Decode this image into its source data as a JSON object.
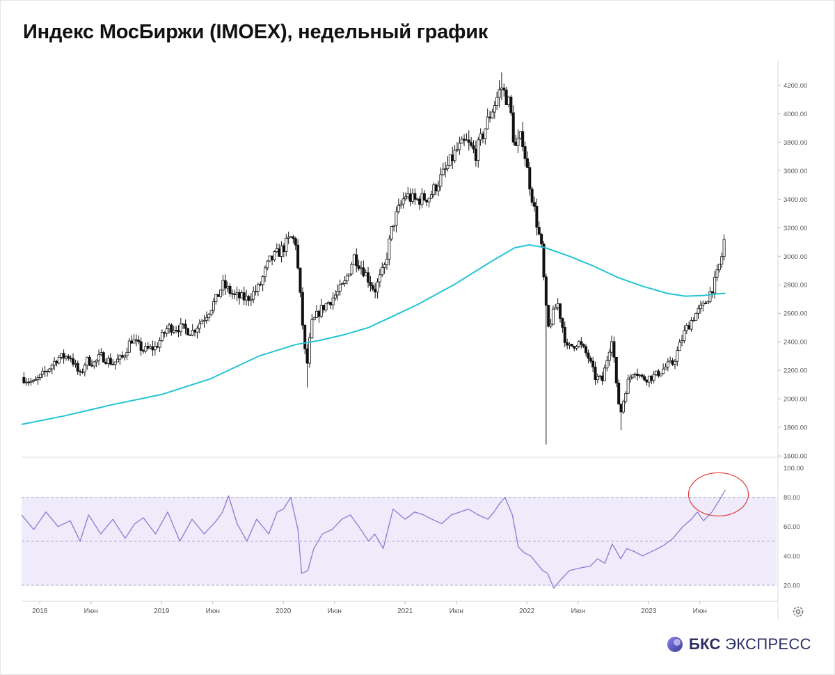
{
  "title": "Индекс МосБиржи (IMOEX), недельный график",
  "brand": {
    "bold": "БКС",
    "light": "ЭКСПРЕСС",
    "color": "#2b2d64"
  },
  "colors": {
    "candle": "#111111",
    "ma": "#22c4d4",
    "rsi_line": "#8c7ad0",
    "rsi_band": "#efebfb",
    "annotation": "#e23a3a"
  },
  "chart_data": [
    {
      "type": "candlestick",
      "title": "Индекс МосБиржи (IMOEX), недельный график",
      "y_ticks": [
        1600,
        1800,
        2000,
        2200,
        2400,
        2600,
        2800,
        3000,
        3200,
        3400,
        3600,
        3800,
        4000,
        4200
      ],
      "y_tick_labels": [
        "1600.00",
        "1800.00",
        "2000.00",
        "2200.00",
        "2400.00",
        "2600.00",
        "2800.00",
        "3000.00",
        "3200.00",
        "3400.00",
        "3600.00",
        "3800.00",
        "4000.00",
        "4200.00"
      ],
      "ylim": [
        1600,
        4300
      ],
      "x_ticks": [
        2018.0,
        2018.42,
        2019.0,
        2019.42,
        2020.0,
        2020.42,
        2021.0,
        2021.42,
        2022.0,
        2022.42,
        2023.0,
        2023.42
      ],
      "x_tick_labels": [
        "2018",
        "Июн",
        "2019",
        "Июн",
        "2020",
        "Июн",
        "2021",
        "Июн",
        "2022",
        "Июн",
        "2023",
        "Июн"
      ],
      "xlim": [
        2017.85,
        2024.05
      ],
      "close_anchors": [
        [
          2017.85,
          2150
        ],
        [
          2017.95,
          2110
        ],
        [
          2018.05,
          2190
        ],
        [
          2018.15,
          2290
        ],
        [
          2018.25,
          2300
        ],
        [
          2018.33,
          2160
        ],
        [
          2018.38,
          2270
        ],
        [
          2018.45,
          2250
        ],
        [
          2018.5,
          2300
        ],
        [
          2018.6,
          2250
        ],
        [
          2018.68,
          2290
        ],
        [
          2018.75,
          2420
        ],
        [
          2018.85,
          2340
        ],
        [
          2018.95,
          2360
        ],
        [
          2019.05,
          2500
        ],
        [
          2019.15,
          2500
        ],
        [
          2019.25,
          2470
        ],
        [
          2019.35,
          2570
        ],
        [
          2019.45,
          2700
        ],
        [
          2019.5,
          2800
        ],
        [
          2019.6,
          2720
        ],
        [
          2019.7,
          2700
        ],
        [
          2019.8,
          2780
        ],
        [
          2019.88,
          2960
        ],
        [
          2020.0,
          3060
        ],
        [
          2020.06,
          3130
        ],
        [
          2020.1,
          3100
        ],
        [
          2020.13,
          2800
        ],
        [
          2020.19,
          2200
        ],
        [
          2020.23,
          2520
        ],
        [
          2020.3,
          2620
        ],
        [
          2020.42,
          2720
        ],
        [
          2020.5,
          2800
        ],
        [
          2020.58,
          3000
        ],
        [
          2020.66,
          2900
        ],
        [
          2020.75,
          2760
        ],
        [
          2020.83,
          2920
        ],
        [
          2020.9,
          3230
        ],
        [
          2021.0,
          3430
        ],
        [
          2021.08,
          3390
        ],
        [
          2021.2,
          3420
        ],
        [
          2021.33,
          3600
        ],
        [
          2021.42,
          3740
        ],
        [
          2021.5,
          3800
        ],
        [
          2021.58,
          3720
        ],
        [
          2021.7,
          4000
        ],
        [
          2021.79,
          4190
        ],
        [
          2021.86,
          4060
        ],
        [
          2021.9,
          3750
        ],
        [
          2021.96,
          3850
        ],
        [
          2022.0,
          3620
        ],
        [
          2022.05,
          3380
        ],
        [
          2022.12,
          3050
        ],
        [
          2022.17,
          2480
        ],
        [
          2022.25,
          2680
        ],
        [
          2022.33,
          2350
        ],
        [
          2022.42,
          2400
        ],
        [
          2022.5,
          2300
        ],
        [
          2022.56,
          2150
        ],
        [
          2022.62,
          2130
        ],
        [
          2022.7,
          2450
        ],
        [
          2022.74,
          2030
        ],
        [
          2022.77,
          1900
        ],
        [
          2022.82,
          2100
        ],
        [
          2022.88,
          2210
        ],
        [
          2022.95,
          2140
        ],
        [
          2023.05,
          2160
        ],
        [
          2023.15,
          2230
        ],
        [
          2023.2,
          2250
        ],
        [
          2023.3,
          2480
        ],
        [
          2023.38,
          2590
        ],
        [
          2023.45,
          2650
        ],
        [
          2023.55,
          2830
        ],
        [
          2023.6,
          3000
        ],
        [
          2023.63,
          3170
        ]
      ],
      "moving_average": [
        [
          2017.85,
          1820
        ],
        [
          2018.2,
          1880
        ],
        [
          2018.6,
          1960
        ],
        [
          2019.0,
          2030
        ],
        [
          2019.4,
          2140
        ],
        [
          2019.8,
          2300
        ],
        [
          2020.1,
          2380
        ],
        [
          2020.3,
          2410
        ],
        [
          2020.5,
          2450
        ],
        [
          2020.7,
          2500
        ],
        [
          2020.9,
          2580
        ],
        [
          2021.1,
          2660
        ],
        [
          2021.4,
          2800
        ],
        [
          2021.7,
          2960
        ],
        [
          2021.9,
          3060
        ],
        [
          2022.02,
          3080
        ],
        [
          2022.15,
          3060
        ],
        [
          2022.35,
          3000
        ],
        [
          2022.55,
          2930
        ],
        [
          2022.75,
          2850
        ],
        [
          2022.95,
          2790
        ],
        [
          2023.15,
          2740
        ],
        [
          2023.3,
          2720
        ],
        [
          2023.45,
          2725
        ],
        [
          2023.55,
          2735
        ],
        [
          2023.63,
          2740
        ]
      ]
    },
    {
      "type": "line",
      "indicator": "RSI",
      "y_ticks": [
        20,
        40,
        60,
        80,
        100
      ],
      "y_tick_labels": [
        "20.00",
        "40.00",
        "60.00",
        "80.00",
        "100.00"
      ],
      "ylim": [
        10,
        105
      ],
      "band": [
        20,
        80
      ],
      "midline": 50,
      "x": [
        2017.85,
        2017.95,
        2018.05,
        2018.15,
        2018.25,
        2018.33,
        2018.4,
        2018.5,
        2018.6,
        2018.7,
        2018.78,
        2018.85,
        2018.95,
        2019.05,
        2019.15,
        2019.25,
        2019.35,
        2019.45,
        2019.5,
        2019.55,
        2019.62,
        2019.7,
        2019.78,
        2019.88,
        2019.95,
        2020.0,
        2020.06,
        2020.12,
        2020.15,
        2020.2,
        2020.25,
        2020.32,
        2020.4,
        2020.48,
        2020.55,
        2020.62,
        2020.7,
        2020.75,
        2020.82,
        2020.9,
        2021.0,
        2021.08,
        2021.15,
        2021.22,
        2021.3,
        2021.38,
        2021.45,
        2021.52,
        2021.6,
        2021.68,
        2021.73,
        2021.77,
        2021.82,
        2021.88,
        2021.93,
        2021.98,
        2022.03,
        2022.08,
        2022.13,
        2022.17,
        2022.22,
        2022.28,
        2022.35,
        2022.45,
        2022.52,
        2022.58,
        2022.64,
        2022.7,
        2022.73,
        2022.77,
        2022.82,
        2022.88,
        2022.95,
        2023.05,
        2023.12,
        2023.2,
        2023.28,
        2023.35,
        2023.4,
        2023.45,
        2023.52,
        2023.58,
        2023.63
      ],
      "values": [
        68,
        58,
        70,
        60,
        64,
        50,
        68,
        55,
        65,
        52,
        62,
        66,
        55,
        70,
        50,
        65,
        55,
        64,
        70,
        81,
        62,
        50,
        65,
        55,
        70,
        72,
        80,
        58,
        28,
        30,
        45,
        55,
        58,
        65,
        68,
        60,
        50,
        55,
        45,
        72,
        65,
        70,
        68,
        65,
        62,
        68,
        70,
        72,
        68,
        65,
        70,
        75,
        80,
        68,
        46,
        42,
        40,
        35,
        30,
        28,
        18,
        24,
        30,
        32,
        33,
        38,
        35,
        48,
        44,
        38,
        45,
        43,
        40,
        44,
        47,
        52,
        60,
        65,
        70,
        64,
        70,
        78,
        85
      ]
    }
  ]
}
